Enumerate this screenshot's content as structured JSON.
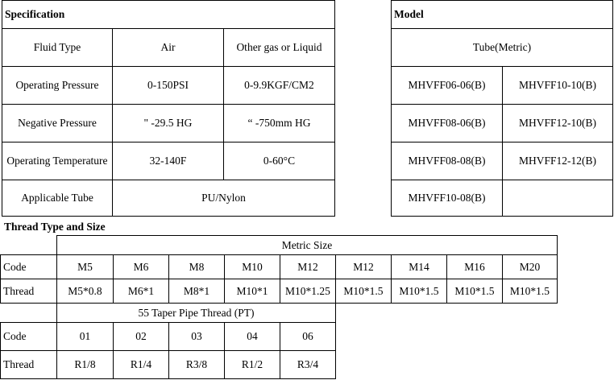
{
  "specification": {
    "title": "Specification",
    "rows": [
      [
        "Fluid Type",
        "Air",
        "Other gas or Liquid"
      ],
      [
        "Operating Pressure",
        "0-150PSI",
        "0-9.9KGF/CM2"
      ],
      [
        "Negative Pressure",
        "\" -29.5 HG",
        "“ -750mm HG"
      ],
      [
        "Operating Temperature",
        "32-140F",
        "0-60°C"
      ],
      [
        "Applicable Tube",
        "PU/Nylon"
      ]
    ]
  },
  "model": {
    "title": "Model",
    "header": "Tube(Metric)",
    "rows": [
      [
        "MHVFF06-06(B)",
        "MHVFF10-10(B)"
      ],
      [
        "MHVFF08-06(B)",
        "MHVFF12-10(B)"
      ],
      [
        "MHVFF08-08(B)",
        "MHVFF12-12(B)"
      ],
      [
        "MHVFF10-08(B)"
      ]
    ]
  },
  "thread": {
    "title": "Thread Type and Size",
    "metric": {
      "header": "Metric Size",
      "code_label": "Code",
      "thread_label": "Thread",
      "codes": [
        "M5",
        "M6",
        "M8",
        "M10",
        "M12",
        "M12",
        "M14",
        "M16",
        "M20"
      ],
      "threads": [
        "M5*0.8",
        "M6*1",
        "M8*1",
        "M10*1",
        "M10*1.25",
        "M10*1.5",
        "M10*1.5",
        "M10*1.5",
        "M10*1.5"
      ]
    },
    "pt": {
      "header": "55 Taper Pipe Thread (PT)",
      "code_label": "Code",
      "thread_label": "Thread",
      "codes": [
        "01",
        "02",
        "03",
        "04",
        "06"
      ],
      "threads": [
        "R1/8",
        "R1/4",
        "R3/8",
        "R1/2",
        "R3/4"
      ]
    }
  }
}
